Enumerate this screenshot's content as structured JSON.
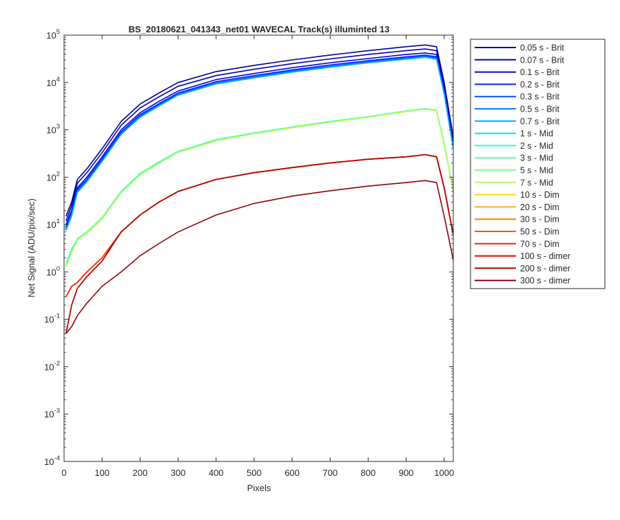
{
  "chart_data": {
    "type": "line",
    "title": "BS_20180621_041343_net01 WAVECAL  Track(s) illuminted 13",
    "xlabel": "Pixels",
    "ylabel": "Net Signal (ADU/pix/sec)",
    "xlim": [
      0,
      1024
    ],
    "ylim_exponents": [
      -4,
      5
    ],
    "yscale": "log",
    "x_ticks": [
      0,
      100,
      200,
      300,
      400,
      500,
      600,
      700,
      800,
      900,
      1000
    ],
    "x_tick_labels": [
      "0",
      "100",
      "200",
      "300",
      "400",
      "500",
      "600",
      "700",
      "800",
      "900",
      "1000"
    ],
    "y_ticks": [
      {
        "base": "10",
        "exp": "5"
      },
      {
        "base": "10",
        "exp": "4"
      },
      {
        "base": "10",
        "exp": "3"
      },
      {
        "base": "10",
        "exp": "2"
      },
      {
        "base": "10",
        "exp": "1"
      },
      {
        "base": "10",
        "exp": "0"
      },
      {
        "base": "10",
        "exp": "-1"
      },
      {
        "base": "10",
        "exp": "-2"
      },
      {
        "base": "10",
        "exp": "-3"
      },
      {
        "base": "10",
        "exp": "-4"
      }
    ],
    "grid": false,
    "legend_position": "outside-right",
    "x": [
      5,
      20,
      35,
      60,
      100,
      150,
      200,
      250,
      300,
      400,
      500,
      600,
      700,
      800,
      900,
      950,
      980,
      1000,
      1024
    ],
    "series": [
      {
        "name": "0.05 s - Brit",
        "color": "#00008f",
        "values": [
          15,
          30,
          90,
          150,
          400,
          1500,
          3500,
          6000,
          10000,
          17000,
          23000,
          30000,
          38000,
          47000,
          57000,
          62000,
          57000,
          10000,
          700
        ]
      },
      {
        "name": "0.07 s - Brit",
        "color": "#0000b3",
        "values": [
          12,
          25,
          75,
          125,
          330,
          1250,
          2900,
          5000,
          8300,
          14000,
          19000,
          25000,
          31500,
          39000,
          47000,
          51000,
          47000,
          8300,
          580
        ]
      },
      {
        "name": "0.1 s - Brit",
        "color": "#0000df",
        "values": [
          10,
          20,
          60,
          100,
          270,
          1000,
          2300,
          4000,
          6600,
          11500,
          15500,
          20500,
          26000,
          32000,
          39000,
          42000,
          39000,
          7000,
          500
        ]
      },
      {
        "name": "0.2 s - Brit",
        "color": "#0020ff",
        "values": [
          9,
          18,
          55,
          90,
          245,
          900,
          2100,
          3600,
          6000,
          10400,
          14000,
          18500,
          23500,
          29000,
          35000,
          38000,
          35000,
          6300,
          450
        ]
      },
      {
        "name": "0.3 s - Brit",
        "color": "#0050ff",
        "values": [
          8.5,
          17,
          52,
          85,
          230,
          850,
          2000,
          3400,
          5700,
          9800,
          13200,
          17500,
          22000,
          27500,
          33000,
          36000,
          33000,
          6000,
          420
        ]
      },
      {
        "name": "0.5 s - Brit",
        "color": "#0080ff",
        "values": [
          8,
          16,
          50,
          82,
          220,
          820,
          1900,
          3300,
          5500,
          9500,
          12800,
          17000,
          21500,
          26500,
          32000,
          35000,
          32000,
          5800,
          410
        ]
      },
      {
        "name": "0.7 s - Brit",
        "color": "#00b0ff",
        "values": [
          7.5,
          15,
          48,
          80,
          215,
          800,
          1850,
          3200,
          5400,
          9300,
          12500,
          16500,
          21000,
          26000,
          31000,
          34000,
          31000,
          5700,
          400
        ]
      },
      {
        "name": "1 s - Mid",
        "color": "#00e0ff",
        "values": [
          1.5,
          3,
          5,
          7,
          14,
          50,
          120,
          210,
          350,
          620,
          860,
          1150,
          1500,
          1900,
          2500,
          2800,
          2600,
          500,
          55
        ]
      },
      {
        "name": "2 s - Mid",
        "color": "#20ffdf",
        "values": [
          1.4,
          2.9,
          5,
          7,
          14,
          50,
          120,
          210,
          350,
          620,
          860,
          1150,
          1500,
          1900,
          2500,
          2800,
          2600,
          500,
          55
        ]
      },
      {
        "name": "3 s - Mid",
        "color": "#50ffaf",
        "values": [
          1.4,
          2.8,
          5,
          7,
          14,
          49,
          118,
          205,
          345,
          610,
          850,
          1140,
          1480,
          1880,
          2480,
          2780,
          2580,
          490,
          54
        ]
      },
      {
        "name": "5 s - Mid",
        "color": "#80ff80",
        "values": [
          1.3,
          2.7,
          4.8,
          6.8,
          13.5,
          48,
          115,
          200,
          340,
          600,
          840,
          1120,
          1460,
          1860,
          2450,
          2750,
          2550,
          480,
          53
        ]
      },
      {
        "name": "7 s - Mid",
        "color": "#afff50",
        "values": [
          1.3,
          2.6,
          4.7,
          6.6,
          13,
          47,
          113,
          198,
          335,
          590,
          830,
          1110,
          1450,
          1850,
          2430,
          2730,
          2530,
          475,
          52
        ]
      },
      {
        "name": "10 s - Dim",
        "color": "#ffdf00",
        "values": [
          0.3,
          0.5,
          0.6,
          1.0,
          2.0,
          7,
          16,
          30,
          50,
          90,
          125,
          160,
          200,
          240,
          270,
          300,
          270,
          60,
          6
        ]
      },
      {
        "name": "20 s - Dim",
        "color": "#ffaf00",
        "values": [
          0.3,
          0.5,
          0.6,
          1.0,
          2.0,
          7,
          16,
          30,
          50,
          90,
          125,
          160,
          200,
          240,
          270,
          300,
          270,
          60,
          6
        ]
      },
      {
        "name": "30 s - Dim",
        "color": "#ff8000",
        "values": [
          0.3,
          0.5,
          0.6,
          1.0,
          2.0,
          7,
          16,
          30,
          50,
          90,
          125,
          160,
          200,
          240,
          270,
          300,
          270,
          60,
          6
        ]
      },
      {
        "name": "50 s - Dim",
        "color": "#ff5000",
        "values": [
          0.3,
          0.5,
          0.6,
          1.0,
          2.0,
          7,
          16,
          30,
          50,
          90,
          125,
          160,
          200,
          240,
          270,
          300,
          270,
          60,
          6
        ]
      },
      {
        "name": "70 s - Dim",
        "color": "#ff2000",
        "values": [
          0.3,
          0.5,
          0.6,
          1.0,
          2.0,
          7,
          16,
          30,
          50,
          90,
          125,
          160,
          200,
          240,
          270,
          300,
          270,
          60,
          6
        ]
      },
      {
        "name": "100 s - dimer",
        "color": "#df0000",
        "values": [
          0.05,
          0.2,
          0.45,
          0.8,
          1.7,
          7,
          16,
          30,
          50,
          90,
          125,
          160,
          200,
          240,
          270,
          300,
          270,
          60,
          6
        ]
      },
      {
        "name": "200 s - dimer",
        "color": "#b30000",
        "values": [
          0.05,
          0.2,
          0.45,
          0.8,
          1.7,
          7,
          16,
          30,
          50,
          90,
          125,
          160,
          200,
          240,
          270,
          300,
          270,
          60,
          6
        ]
      },
      {
        "name": "300 s - dimer",
        "color": "#8f0000",
        "values": [
          0.05,
          0.07,
          0.12,
          0.22,
          0.5,
          1.0,
          2.2,
          4,
          7,
          16,
          28,
          40,
          52,
          65,
          77,
          85,
          77,
          15,
          1.8
        ]
      }
    ]
  }
}
